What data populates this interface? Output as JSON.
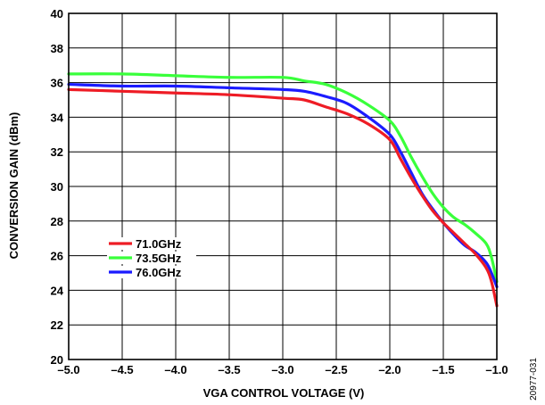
{
  "figure_id": "20977-031",
  "chart_data": {
    "type": "line",
    "xlabel": "VGA CONTROL VOLTAGE (V)",
    "ylabel": "CONVERSION GAIN (dBm)",
    "xlim": [
      -5.0,
      -1.0
    ],
    "ylim": [
      20,
      40
    ],
    "grid": true,
    "legend_position": "lower-left",
    "xticks": [
      "–5.0",
      "–4.5",
      "–4.0",
      "–3.5",
      "–3.0",
      "–2.5",
      "–2.0",
      "–1.5",
      "–1.0"
    ],
    "xtick_values": [
      -5.0,
      -4.5,
      -4.0,
      -3.5,
      -3.0,
      -2.5,
      -2.0,
      -1.5,
      -1.0
    ],
    "yticks": [
      "20",
      "22",
      "24",
      "26",
      "28",
      "30",
      "32",
      "34",
      "36",
      "38",
      "40"
    ],
    "ytick_values": [
      20,
      22,
      24,
      26,
      28,
      30,
      32,
      34,
      36,
      38,
      40
    ],
    "series": [
      {
        "name": "71.0GHz",
        "color": "#ee1c25",
        "points": [
          [
            -5.0,
            35.6
          ],
          [
            -4.5,
            35.5
          ],
          [
            -4.0,
            35.4
          ],
          [
            -3.5,
            35.3
          ],
          [
            -3.0,
            35.1
          ],
          [
            -2.8,
            35.0
          ],
          [
            -2.6,
            34.6
          ],
          [
            -2.4,
            34.2
          ],
          [
            -2.2,
            33.6
          ],
          [
            -2.0,
            32.7
          ],
          [
            -1.9,
            31.6
          ],
          [
            -1.8,
            30.5
          ],
          [
            -1.7,
            29.5
          ],
          [
            -1.6,
            28.6
          ],
          [
            -1.5,
            27.9
          ],
          [
            -1.4,
            27.3
          ],
          [
            -1.3,
            26.7
          ],
          [
            -1.2,
            26.1
          ],
          [
            -1.1,
            25.3
          ],
          [
            -1.05,
            24.5
          ],
          [
            -1.0,
            23.1
          ]
        ]
      },
      {
        "name": "73.5GHz",
        "color": "#39ff3b",
        "points": [
          [
            -5.0,
            36.5
          ],
          [
            -4.5,
            36.5
          ],
          [
            -4.0,
            36.4
          ],
          [
            -3.5,
            36.3
          ],
          [
            -3.0,
            36.3
          ],
          [
            -2.8,
            36.1
          ],
          [
            -2.6,
            35.9
          ],
          [
            -2.4,
            35.4
          ],
          [
            -2.2,
            34.7
          ],
          [
            -2.0,
            33.8
          ],
          [
            -1.9,
            32.9
          ],
          [
            -1.8,
            31.7
          ],
          [
            -1.7,
            30.6
          ],
          [
            -1.6,
            29.6
          ],
          [
            -1.5,
            28.8
          ],
          [
            -1.4,
            28.2
          ],
          [
            -1.3,
            27.8
          ],
          [
            -1.2,
            27.3
          ],
          [
            -1.1,
            26.7
          ],
          [
            -1.05,
            25.9
          ],
          [
            -1.0,
            24.5
          ]
        ]
      },
      {
        "name": "76.0GHz",
        "color": "#1b1bff",
        "points": [
          [
            -5.0,
            35.9
          ],
          [
            -4.5,
            35.8
          ],
          [
            -4.0,
            35.8
          ],
          [
            -3.5,
            35.7
          ],
          [
            -3.0,
            35.6
          ],
          [
            -2.8,
            35.5
          ],
          [
            -2.6,
            35.2
          ],
          [
            -2.4,
            34.8
          ],
          [
            -2.2,
            34.0
          ],
          [
            -2.0,
            33.0
          ],
          [
            -1.9,
            32.0
          ],
          [
            -1.8,
            30.8
          ],
          [
            -1.7,
            29.6
          ],
          [
            -1.6,
            28.7
          ],
          [
            -1.5,
            27.9
          ],
          [
            -1.4,
            27.2
          ],
          [
            -1.3,
            26.6
          ],
          [
            -1.2,
            26.2
          ],
          [
            -1.1,
            25.6
          ],
          [
            -1.05,
            25.0
          ],
          [
            -1.0,
            24.2
          ]
        ]
      }
    ]
  }
}
